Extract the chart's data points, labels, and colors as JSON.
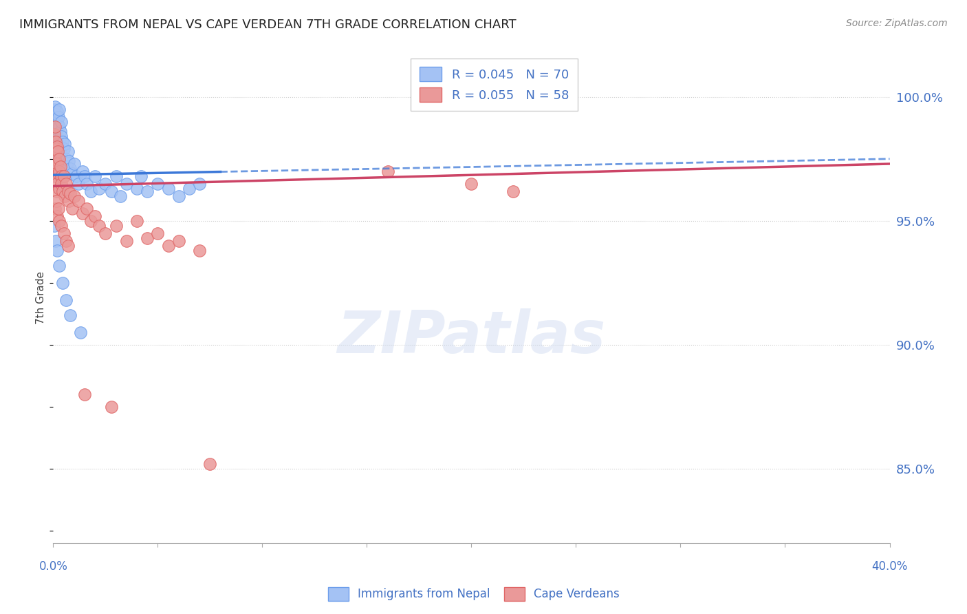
{
  "title": "IMMIGRANTS FROM NEPAL VS CAPE VERDEAN 7TH GRADE CORRELATION CHART",
  "source": "Source: ZipAtlas.com",
  "ylabel": "7th Grade",
  "xmin": 0.0,
  "xmax": 40.0,
  "ymin": 82.0,
  "ymax": 101.8,
  "nepal_R": 0.045,
  "nepal_N": 70,
  "cape_R": 0.055,
  "cape_N": 58,
  "nepal_color": "#a4c2f4",
  "cape_color": "#ea9999",
  "nepal_edge_color": "#6d9eeb",
  "cape_edge_color": "#e06666",
  "nepal_line_color": "#3c78d8",
  "cape_line_color": "#cc4466",
  "nepal_x": [
    0.05,
    0.05,
    0.05,
    0.08,
    0.08,
    0.1,
    0.1,
    0.1,
    0.12,
    0.12,
    0.15,
    0.15,
    0.15,
    0.18,
    0.18,
    0.2,
    0.2,
    0.2,
    0.22,
    0.25,
    0.25,
    0.28,
    0.3,
    0.3,
    0.3,
    0.35,
    0.35,
    0.38,
    0.4,
    0.4,
    0.45,
    0.5,
    0.5,
    0.55,
    0.6,
    0.65,
    0.7,
    0.75,
    0.8,
    0.9,
    1.0,
    1.1,
    1.2,
    1.4,
    1.5,
    1.6,
    1.8,
    2.0,
    2.2,
    2.5,
    2.8,
    3.0,
    3.2,
    3.5,
    4.0,
    4.2,
    4.5,
    5.0,
    5.5,
    6.0,
    6.5,
    7.0,
    0.07,
    0.12,
    0.2,
    0.3,
    0.45,
    0.6,
    0.8,
    1.3
  ],
  "nepal_y": [
    99.5,
    98.8,
    97.5,
    99.2,
    98.0,
    99.6,
    98.5,
    97.8,
    99.3,
    98.2,
    99.1,
    98.6,
    97.4,
    99.0,
    98.3,
    99.4,
    98.7,
    97.6,
    98.9,
    99.2,
    98.1,
    98.8,
    99.5,
    98.3,
    97.5,
    98.6,
    97.8,
    99.0,
    98.4,
    97.7,
    98.2,
    97.9,
    96.8,
    98.1,
    97.5,
    97.2,
    97.8,
    97.4,
    97.1,
    96.9,
    97.3,
    96.8,
    96.5,
    97.0,
    96.8,
    96.5,
    96.2,
    96.8,
    96.3,
    96.5,
    96.2,
    96.8,
    96.0,
    96.5,
    96.3,
    96.8,
    96.2,
    96.5,
    96.3,
    96.0,
    96.3,
    96.5,
    94.8,
    94.2,
    93.8,
    93.2,
    92.5,
    91.8,
    91.2,
    90.5
  ],
  "cape_x": [
    0.05,
    0.05,
    0.08,
    0.1,
    0.1,
    0.12,
    0.15,
    0.15,
    0.18,
    0.2,
    0.2,
    0.22,
    0.25,
    0.28,
    0.3,
    0.3,
    0.35,
    0.38,
    0.4,
    0.45,
    0.5,
    0.55,
    0.6,
    0.7,
    0.75,
    0.8,
    0.9,
    1.0,
    1.2,
    1.4,
    1.6,
    1.8,
    2.0,
    2.2,
    2.5,
    3.0,
    3.5,
    4.0,
    4.5,
    5.0,
    5.5,
    6.0,
    7.0,
    0.1,
    0.15,
    0.2,
    0.25,
    0.3,
    0.4,
    0.5,
    0.6,
    0.7,
    1.5,
    2.8,
    7.5,
    16.0,
    20.0,
    22.0
  ],
  "cape_y": [
    98.5,
    97.2,
    98.8,
    97.5,
    96.8,
    98.2,
    97.9,
    96.5,
    98.0,
    97.3,
    96.2,
    97.8,
    96.9,
    97.5,
    97.0,
    96.3,
    97.2,
    96.8,
    96.5,
    96.2,
    96.8,
    96.0,
    96.5,
    96.2,
    95.8,
    96.1,
    95.5,
    96.0,
    95.8,
    95.3,
    95.5,
    95.0,
    95.2,
    94.8,
    94.5,
    94.8,
    94.2,
    95.0,
    94.3,
    94.5,
    94.0,
    94.2,
    93.8,
    95.5,
    95.8,
    95.2,
    95.5,
    95.0,
    94.8,
    94.5,
    94.2,
    94.0,
    88.0,
    87.5,
    85.2,
    97.0,
    96.5,
    96.2
  ],
  "watermark_text": "ZIPatlas",
  "background_color": "#ffffff",
  "grid_color": "#cccccc",
  "title_color": "#222222",
  "axis_label_color": "#4472c4",
  "nepal_reg_x_start": 0.0,
  "nepal_reg_x_solid_end": 8.0,
  "nepal_reg_x_end": 40.0,
  "nepal_reg_y_at_0": 96.85,
  "nepal_reg_y_at_40": 97.5,
  "cape_reg_x_start": 0.0,
  "cape_reg_x_end": 40.0,
  "cape_reg_y_at_0": 96.4,
  "cape_reg_y_at_40": 97.3,
  "ytick_positions": [
    85.0,
    90.0,
    95.0,
    100.0
  ],
  "xtick_count": 9
}
